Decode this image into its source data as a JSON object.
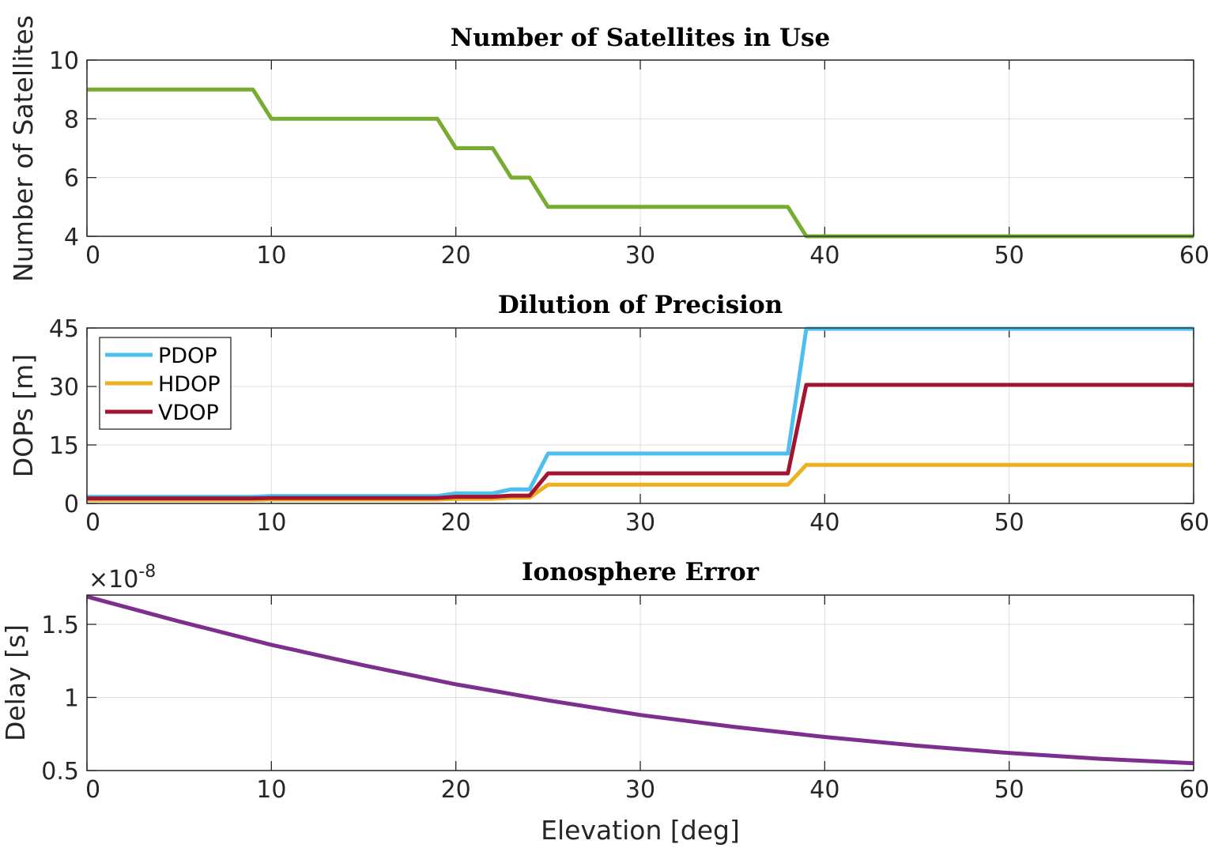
{
  "chart_data": [
    {
      "type": "line",
      "title": "Number of Satellites in Use",
      "xlabel": "",
      "ylabel": "Number of Satellites",
      "xlim": [
        0,
        60
      ],
      "ylim": [
        4,
        10
      ],
      "xticks": [
        0,
        10,
        20,
        30,
        40,
        50,
        60
      ],
      "yticks": [
        4,
        6,
        8,
        10
      ],
      "grid": true,
      "series": [
        {
          "color": "#77ac30",
          "x": [
            0,
            9,
            10,
            19,
            20,
            22,
            23,
            24,
            25,
            38,
            39,
            60
          ],
          "y": [
            9,
            9,
            8,
            8,
            7,
            7,
            6,
            6,
            5,
            5,
            4,
            4
          ]
        }
      ]
    },
    {
      "type": "line",
      "title": "Dilution of Precision",
      "xlabel": "",
      "ylabel": "DOPs [m]",
      "xlim": [
        0,
        60
      ],
      "ylim": [
        0,
        45
      ],
      "xticks": [
        0,
        10,
        20,
        30,
        40,
        50,
        60
      ],
      "yticks": [
        0,
        15,
        30,
        45
      ],
      "grid": true,
      "legend": "top-left",
      "series": [
        {
          "name": "PDOP",
          "color": "#4dbeee",
          "x": [
            0,
            9,
            10,
            19,
            20,
            22,
            23,
            24,
            25,
            38,
            39,
            60
          ],
          "y": [
            1.7,
            1.7,
            1.9,
            1.9,
            2.6,
            2.6,
            3.6,
            3.6,
            12.8,
            12.8,
            44.8,
            44.8
          ]
        },
        {
          "name": "HDOP",
          "color": "#edb120",
          "x": [
            0,
            9,
            10,
            19,
            20,
            22,
            23,
            24,
            25,
            38,
            39,
            60
          ],
          "y": [
            0.9,
            0.9,
            1.0,
            1.0,
            1.2,
            1.2,
            1.5,
            1.5,
            4.8,
            4.8,
            9.9,
            9.9
          ]
        },
        {
          "name": "VDOP",
          "color": "#a2142f",
          "x": [
            0,
            9,
            10,
            19,
            20,
            22,
            23,
            24,
            25,
            38,
            39,
            60
          ],
          "y": [
            1.3,
            1.3,
            1.4,
            1.4,
            1.7,
            1.7,
            2.0,
            2.0,
            7.7,
            7.7,
            30.4,
            30.4
          ]
        }
      ]
    },
    {
      "type": "line",
      "title": "Ionosphere Error",
      "xlabel": "Elevation [deg]",
      "ylabel": "Delay [s]",
      "xlim": [
        0,
        60
      ],
      "ylim": [
        0.5,
        1.7
      ],
      "xticks": [
        0,
        10,
        20,
        30,
        40,
        50,
        60
      ],
      "yticks": [
        0.5,
        1,
        1.5
      ],
      "ytick_labels": [
        "0.5",
        "1",
        "1.5"
      ],
      "exponent_base": "×10",
      "exponent_power": "-8",
      "grid": true,
      "series": [
        {
          "color": "#7e2f8e",
          "x": [
            0,
            5,
            10,
            15,
            20,
            25,
            30,
            35,
            40,
            45,
            50,
            55,
            60
          ],
          "y": [
            1.69,
            1.52,
            1.36,
            1.22,
            1.09,
            0.98,
            0.88,
            0.8,
            0.73,
            0.67,
            0.62,
            0.58,
            0.55
          ]
        }
      ]
    }
  ]
}
